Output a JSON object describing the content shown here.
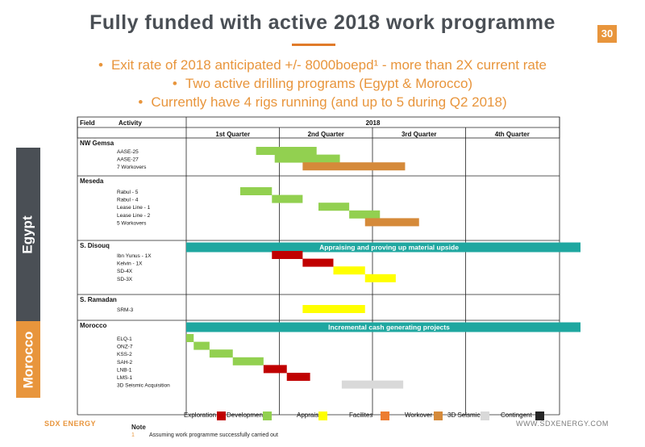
{
  "title": "Fully funded with active 2018 work programme",
  "page_number": "30",
  "bullets": [
    "Exit rate of 2018 anticipated +/- 8000boepd¹ - more than 2X current rate",
    "Two active drilling programs (Egypt & Morocco)",
    "Currently have 4 rigs running (and up to 5 during Q2 2018)"
  ],
  "bullet_marker": "•",
  "regions": [
    {
      "label": "Egypt",
      "color": "#4a4f55"
    },
    {
      "label": "Morocco",
      "color": "#e8953c"
    }
  ],
  "table": {
    "header_field": "Field",
    "header_activity": "Activity",
    "year": "2018",
    "quarters": [
      "1st Quarter",
      "2nd Quarter",
      "3rd Quarter",
      "4th  Quarter"
    ]
  },
  "activity_colors": {
    "Exploration": "#c00000",
    "Development": "#92d050",
    "Appraisal": "#ffff00",
    "Facilites": "#ed7d31",
    "Workover": "#d58a3a",
    "3D Seismic": "#d9d9d9",
    "Contingent": "#262626"
  },
  "chart_data": {
    "type": "gantt",
    "time_unit": "quarter",
    "quarters": [
      "1st Quarter",
      "2nd Quarter",
      "3rd Quarter",
      "4th  Quarter"
    ],
    "groups": [
      {
        "field": "NW Gemsa",
        "rows": [
          {
            "label": "AASE-25",
            "start": 0.75,
            "end": 1.4,
            "type": "Development"
          },
          {
            "label": "AASE-27",
            "start": 0.95,
            "end": 1.65,
            "type": "Development"
          },
          {
            "label": "7 Workovers",
            "start": 1.25,
            "end": 2.35,
            "type": "Workover"
          }
        ]
      },
      {
        "field": "Meseda",
        "rows": [
          {
            "label": "Rabul - 5",
            "start": 0.58,
            "end": 0.92,
            "type": "Development"
          },
          {
            "label": "Rabul - 4",
            "start": 0.92,
            "end": 1.25,
            "type": "Development"
          },
          {
            "label": "Lease Line - 1",
            "start": 1.42,
            "end": 1.75,
            "type": "Development"
          },
          {
            "label": "Lease Line - 2",
            "start": 1.75,
            "end": 2.08,
            "type": "Development"
          },
          {
            "label": "5 Workovers",
            "start": 1.92,
            "end": 2.5,
            "type": "Workover"
          }
        ]
      },
      {
        "field": "S. Disouq",
        "banner": "Appraising and proving up material upside",
        "rows": [
          {
            "label": "Ibn Yunus - 1X",
            "start": 0.92,
            "end": 1.25,
            "type": "Exploration"
          },
          {
            "label": "Kelvin - 1X",
            "start": 1.25,
            "end": 1.58,
            "type": "Exploration"
          },
          {
            "label": "SD-4X",
            "start": 1.58,
            "end": 1.92,
            "type": "Appraisal"
          },
          {
            "label": "SD-3X",
            "start": 1.92,
            "end": 2.25,
            "type": "Appraisal"
          }
        ]
      },
      {
        "field": "S. Ramadan",
        "rows": [
          {
            "label": "SRM-3",
            "start": 1.25,
            "end": 1.92,
            "type": "Appraisal"
          }
        ]
      },
      {
        "field": "Morocco",
        "banner": "Incremental cash generating projects",
        "rows": [
          {
            "label": "ELQ-1",
            "start": 0.0,
            "end": 0.08,
            "type": "Development"
          },
          {
            "label": "ONZ-7",
            "start": 0.08,
            "end": 0.25,
            "type": "Development"
          },
          {
            "label": "KSS-2",
            "start": 0.25,
            "end": 0.5,
            "type": "Development"
          },
          {
            "label": "SAH-2",
            "start": 0.5,
            "end": 0.83,
            "type": "Development"
          },
          {
            "label": "LNB-1",
            "start": 0.83,
            "end": 1.08,
            "type": "Exploration"
          },
          {
            "label": "LMS-1",
            "start": 1.08,
            "end": 1.33,
            "type": "Exploration"
          },
          {
            "label": "3D Seismic Acquisition",
            "start": 1.67,
            "end": 2.33,
            "type": "3D Seismic"
          }
        ]
      }
    ]
  },
  "legend": [
    {
      "label": "Exploration",
      "color": "#c00000"
    },
    {
      "label": "Development",
      "color": "#92d050"
    },
    {
      "label": "Appraisal",
      "color": "#ffff00"
    },
    {
      "label": "Facilites",
      "color": "#ed7d31"
    },
    {
      "label": "Workover",
      "color": "#d58a3a"
    },
    {
      "label": "3D Seismic",
      "color": "#d9d9d9"
    },
    {
      "label": "Contingent",
      "color": "#262626"
    }
  ],
  "banner_color": "#1fa7a0",
  "footer": {
    "company": "SDX ENERGY",
    "website": "WWW.SDXENERGY.COM",
    "note_title": "Note",
    "note_number": "1",
    "note_text": "Assuming work programme successfully carried out"
  }
}
